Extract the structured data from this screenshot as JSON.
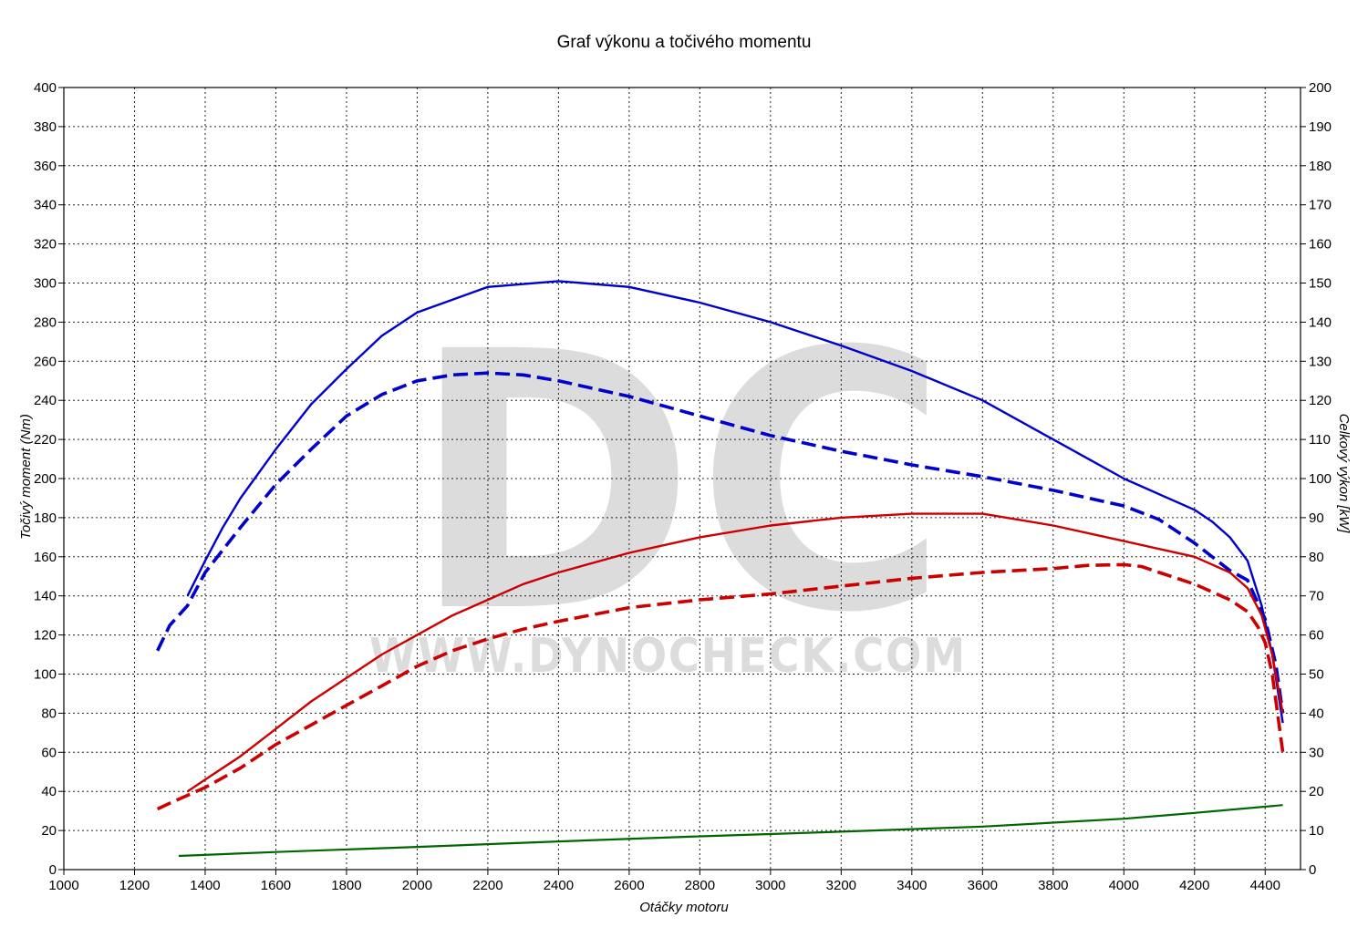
{
  "chart_data": {
    "type": "line",
    "title": "Graf výkonu a točivého momentu",
    "xlabel": "Otáčky motoru",
    "ylabel_left": "Točivý moment (Nm)",
    "ylabel_right": "Celkový výkon [kW]",
    "xlim": [
      1000,
      4500
    ],
    "ylim_left": [
      0,
      400
    ],
    "ylim_right": [
      0,
      200
    ],
    "x_ticks": [
      1000,
      1200,
      1400,
      1600,
      1800,
      2000,
      2200,
      2400,
      2600,
      2800,
      3000,
      3200,
      3400,
      3600,
      3800,
      4000,
      4200,
      4400
    ],
    "y_ticks_left": [
      0,
      20,
      40,
      60,
      80,
      100,
      120,
      140,
      160,
      180,
      200,
      220,
      240,
      260,
      280,
      300,
      320,
      340,
      360,
      380,
      400
    ],
    "y_ticks_right": [
      0,
      10,
      20,
      30,
      40,
      50,
      60,
      70,
      80,
      90,
      100,
      110,
      120,
      130,
      140,
      150,
      160,
      170,
      180,
      190,
      200
    ],
    "grid": true,
    "watermark": {
      "logo": "DC",
      "url": "WWW.DYNOCHECK.COM"
    },
    "series": [
      {
        "axis": "left",
        "color": "#0000cc",
        "style": "solid",
        "points": [
          [
            1350,
            140
          ],
          [
            1400,
            158
          ],
          [
            1450,
            175
          ],
          [
            1500,
            190
          ],
          [
            1600,
            215
          ],
          [
            1700,
            238
          ],
          [
            1800,
            256
          ],
          [
            1900,
            273
          ],
          [
            2000,
            285
          ],
          [
            2200,
            298
          ],
          [
            2400,
            301
          ],
          [
            2600,
            298
          ],
          [
            2800,
            290
          ],
          [
            3000,
            280
          ],
          [
            3200,
            268
          ],
          [
            3400,
            255
          ],
          [
            3600,
            240
          ],
          [
            3800,
            220
          ],
          [
            4000,
            200
          ],
          [
            4100,
            192
          ],
          [
            4200,
            184
          ],
          [
            4250,
            178
          ],
          [
            4300,
            170
          ],
          [
            4350,
            158
          ],
          [
            4390,
            135
          ],
          [
            4420,
            110
          ],
          [
            4450,
            75
          ]
        ]
      },
      {
        "axis": "left",
        "color": "#0000cc",
        "style": "dashed",
        "points": [
          [
            1265,
            112
          ],
          [
            1300,
            125
          ],
          [
            1350,
            135
          ],
          [
            1400,
            152
          ],
          [
            1500,
            175
          ],
          [
            1600,
            197
          ],
          [
            1700,
            215
          ],
          [
            1800,
            232
          ],
          [
            1900,
            243
          ],
          [
            2000,
            250
          ],
          [
            2100,
            253
          ],
          [
            2200,
            254
          ],
          [
            2300,
            253
          ],
          [
            2400,
            250
          ],
          [
            2600,
            242
          ],
          [
            2800,
            232
          ],
          [
            3000,
            222
          ],
          [
            3200,
            214
          ],
          [
            3400,
            207
          ],
          [
            3600,
            201
          ],
          [
            3800,
            194
          ],
          [
            4000,
            186
          ],
          [
            4100,
            179
          ],
          [
            4200,
            167
          ],
          [
            4300,
            153
          ],
          [
            4350,
            148
          ],
          [
            4400,
            128
          ],
          [
            4430,
            105
          ],
          [
            4450,
            80
          ]
        ]
      },
      {
        "axis": "right",
        "color": "#cc0000",
        "style": "solid",
        "points": [
          [
            1350,
            20
          ],
          [
            1400,
            23
          ],
          [
            1500,
            29
          ],
          [
            1600,
            36
          ],
          [
            1700,
            43
          ],
          [
            1800,
            49
          ],
          [
            1900,
            55
          ],
          [
            2000,
            60
          ],
          [
            2100,
            65
          ],
          [
            2200,
            69
          ],
          [
            2300,
            73
          ],
          [
            2400,
            76
          ],
          [
            2600,
            81
          ],
          [
            2800,
            85
          ],
          [
            3000,
            88
          ],
          [
            3200,
            90
          ],
          [
            3400,
            91
          ],
          [
            3600,
            91
          ],
          [
            3800,
            88
          ],
          [
            4000,
            84
          ],
          [
            4100,
            82
          ],
          [
            4200,
            80
          ],
          [
            4300,
            76
          ],
          [
            4350,
            72
          ],
          [
            4390,
            65
          ],
          [
            4420,
            55
          ],
          [
            4450,
            40
          ]
        ]
      },
      {
        "axis": "right",
        "color": "#cc0000",
        "style": "dashed",
        "points": [
          [
            1265,
            15.5
          ],
          [
            1300,
            17
          ],
          [
            1350,
            19
          ],
          [
            1400,
            21
          ],
          [
            1500,
            26
          ],
          [
            1600,
            32
          ],
          [
            1700,
            37
          ],
          [
            1800,
            42
          ],
          [
            1900,
            47
          ],
          [
            2000,
            52
          ],
          [
            2100,
            56
          ],
          [
            2200,
            59
          ],
          [
            2300,
            61.5
          ],
          [
            2400,
            63.5
          ],
          [
            2600,
            67
          ],
          [
            2800,
            69
          ],
          [
            3000,
            70.5
          ],
          [
            3200,
            72.5
          ],
          [
            3400,
            74.5
          ],
          [
            3600,
            76
          ],
          [
            3800,
            77
          ],
          [
            3900,
            77.8
          ],
          [
            4000,
            78
          ],
          [
            4050,
            77.5
          ],
          [
            4100,
            76
          ],
          [
            4200,
            73
          ],
          [
            4300,
            69
          ],
          [
            4350,
            66
          ],
          [
            4380,
            62
          ],
          [
            4400,
            58
          ],
          [
            4420,
            50
          ],
          [
            4450,
            30
          ]
        ]
      },
      {
        "axis": "right",
        "color": "#006600",
        "style": "solid",
        "points": [
          [
            1325,
            3.5
          ],
          [
            1600,
            4.5
          ],
          [
            2000,
            5.8
          ],
          [
            2400,
            7.2
          ],
          [
            2800,
            8.5
          ],
          [
            3200,
            9.7
          ],
          [
            3600,
            11
          ],
          [
            4000,
            13
          ],
          [
            4200,
            14.5
          ],
          [
            4450,
            16.5
          ]
        ]
      }
    ]
  }
}
